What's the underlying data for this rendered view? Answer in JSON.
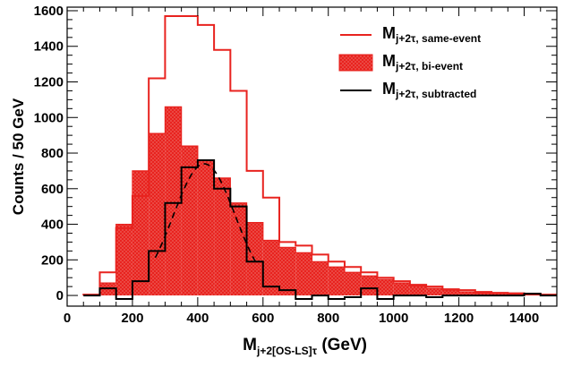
{
  "chart_data": {
    "type": "histogram",
    "title": "",
    "xlabel": {
      "main": "M",
      "sub": "j+2[OS-LS]",
      "tau": "τ",
      "unit": " (GeV)"
    },
    "ylabel": "Counts / 50 GeV",
    "xlim": [
      0,
      1500
    ],
    "ylim": [
      -60,
      1620
    ],
    "bin_width": 50,
    "x_ticks": [
      0,
      200,
      400,
      600,
      800,
      1000,
      1200,
      1400
    ],
    "y_ticks": [
      0,
      200,
      400,
      600,
      800,
      1000,
      1200,
      1400,
      1600
    ],
    "bin_edges": [
      50,
      100,
      150,
      200,
      250,
      300,
      350,
      400,
      450,
      500,
      550,
      600,
      650,
      700,
      750,
      800,
      850,
      900,
      950,
      1000,
      1050,
      1100,
      1150,
      1200,
      1250,
      1300,
      1350,
      1400,
      1450,
      1500
    ],
    "series": [
      {
        "name": "same-event",
        "style": "red-line",
        "color": "#e8231f",
        "values": [
          5,
          130,
          380,
          560,
          1220,
          1570,
          1570,
          1520,
          1380,
          1150,
          700,
          550,
          300,
          280,
          230,
          190,
          160,
          130,
          100,
          80,
          60,
          50,
          35,
          30,
          20,
          15,
          12,
          10,
          5
        ]
      },
      {
        "name": "bi-event",
        "style": "red-fill",
        "color": "#e8231f",
        "values": [
          5,
          70,
          400,
          700,
          910,
          1060,
          840,
          760,
          660,
          520,
          410,
          310,
          270,
          240,
          190,
          160,
          130,
          110,
          90,
          70,
          55,
          40,
          30,
          20,
          15,
          10,
          8,
          5,
          3
        ]
      },
      {
        "name": "subtracted",
        "style": "black-line",
        "color": "#000000",
        "values": [
          0,
          40,
          -20,
          80,
          250,
          520,
          720,
          760,
          600,
          500,
          190,
          50,
          30,
          -20,
          0,
          -20,
          -10,
          40,
          -20,
          0,
          0,
          -10,
          0,
          0,
          0,
          0,
          0,
          10,
          0
        ]
      }
    ],
    "fit": {
      "name": "gaussian-fit",
      "style": "black-dashed",
      "mean": 420,
      "sigma": 95,
      "amplitude": 740,
      "x_range": [
        270,
        580
      ]
    },
    "legend": {
      "position": "top-right",
      "entries": [
        {
          "main": "M",
          "sub": "j+2",
          "tau": "τ",
          "suffix": ", same-event"
        },
        {
          "main": "M",
          "sub": "j+2",
          "tau": "τ",
          "suffix": ", bi-event"
        },
        {
          "main": "M",
          "sub": "j+2",
          "tau": "τ",
          "suffix": ", subtracted"
        }
      ]
    },
    "grid": false
  }
}
